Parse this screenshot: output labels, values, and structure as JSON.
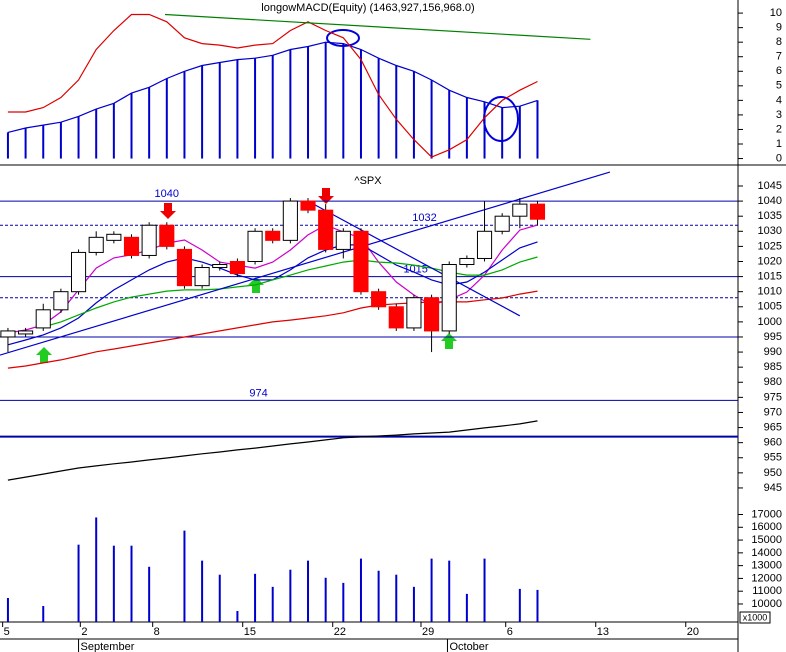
{
  "x_axis": {
    "xlim": [
      -0.45,
      41.36
    ],
    "xticks": [
      {
        "value": -0.3,
        "label": "5"
      },
      {
        "value": 4.1,
        "label": "2"
      },
      {
        "value": 8.2,
        "label": "8"
      },
      {
        "value": 13.3,
        "label": "15"
      },
      {
        "value": 18.4,
        "label": "22"
      },
      {
        "value": 23.4,
        "label": "29"
      },
      {
        "value": 28.2,
        "label": "6"
      },
      {
        "value": 33.3,
        "label": "13"
      },
      {
        "value": 38.4,
        "label": "20"
      }
    ],
    "months": [
      {
        "value": 4.0,
        "label": "September"
      },
      {
        "value": 24.9,
        "label": "October"
      }
    ]
  },
  "chart_data": [
    {
      "type": "indicator",
      "title": "longowMACD(Equity) (1463,927,156,968.0)",
      "ylim": [
        -0.1,
        10.9
      ],
      "yticks": [
        0,
        1,
        2,
        3,
        4,
        5,
        6,
        7,
        8,
        9,
        10
      ],
      "histogram": {
        "color": "#0000cc",
        "values": [
          1.8,
          2.1,
          2.3,
          2.5,
          2.9,
          3.4,
          3.8,
          4.5,
          4.9,
          5.5,
          6.0,
          6.4,
          6.6,
          6.8,
          6.9,
          7.1,
          7.5,
          7.7,
          8.0,
          7.9,
          7.5,
          6.9,
          6.4,
          6.0,
          5.4,
          4.7,
          4.2,
          3.9,
          3.5,
          3.6,
          4.0
        ]
      },
      "series": [
        {
          "color": "#dd0000",
          "values": [
            3.2,
            3.2,
            3.5,
            4.2,
            5.4,
            7.5,
            8.8,
            9.9,
            9.9,
            9.4,
            8.3,
            7.9,
            7.8,
            7.6,
            7.8,
            7.9,
            8.8,
            9.4,
            8.8,
            8.3,
            6.8,
            4.4,
            2.7,
            1.3,
            0.1,
            0.6,
            1.3,
            2.8,
            4.0,
            4.7,
            5.3
          ]
        }
      ],
      "trendlines": [
        {
          "color": "#008000",
          "x": [
            8.9,
            33.0
          ],
          "values": [
            9.9,
            8.2
          ]
        }
      ]
    },
    {
      "type": "candlestick",
      "title": "^SPX",
      "ylim": [
        942,
        1050.3
      ],
      "yticks": [
        945,
        950,
        955,
        960,
        965,
        970,
        975,
        980,
        985,
        990,
        995,
        1000,
        1005,
        1010,
        1015,
        1020,
        1025,
        1030,
        1035,
        1040,
        1045
      ],
      "up_color": "#ffffff",
      "down_color": "#ff0000",
      "open": [
        995,
        996,
        998,
        1004,
        1010,
        1023,
        1027,
        1028,
        1022,
        1032,
        1024,
        1012,
        1018,
        1020,
        1020,
        1030,
        1027,
        1040,
        1037,
        1024,
        1030,
        1010,
        1005,
        998,
        1008,
        997,
        1019,
        1021,
        1030,
        1035,
        1039
      ],
      "close": [
        997,
        997,
        1004,
        1010,
        1023,
        1028,
        1029,
        1022,
        1032,
        1025,
        1012,
        1018,
        1019,
        1016,
        1030,
        1027,
        1040,
        1037,
        1024,
        1030,
        1010,
        1005,
        998,
        1008,
        997,
        1019,
        1021,
        1030,
        1035,
        1039,
        1034
      ],
      "high": [
        998,
        998,
        1006,
        1011,
        1024,
        1030,
        1030,
        1029,
        1033,
        1033,
        1025,
        1019,
        1020,
        1021,
        1031,
        1031,
        1041,
        1041,
        1039,
        1031,
        1031,
        1011,
        1006,
        1009,
        1009,
        1020,
        1022,
        1040,
        1036,
        1041,
        1040
      ],
      "low": [
        990,
        995,
        997,
        1003,
        1009,
        1022,
        1026,
        1021,
        1021,
        1024,
        1011,
        1011,
        1017,
        1015,
        1019,
        1026,
        1026,
        1036,
        1023,
        1021,
        1009,
        1004,
        997,
        997,
        990,
        996,
        1018,
        1020,
        1029,
        1031,
        1032
      ],
      "series": [
        {
          "color": "#cc00cc",
          "values": [
            996.3,
            997.3,
            999.0,
            1003.3,
            1010.6,
            1017.8,
            1021.2,
            1022.2,
            1023.8,
            1026.1,
            1027.1,
            1023.8,
            1019.8,
            1018.8,
            1017.8,
            1019.8,
            1023.8,
            1028.8,
            1032.1,
            1029.8,
            1027.8,
            1019.8,
            1013.2,
            1008.9,
            1005.6,
            1007.3,
            1009.9,
            1015.5,
            1023.8,
            1030.4,
            1032.1
          ]
        },
        {
          "color": "#0000cc",
          "values": [
            992.4,
            994.0,
            995.7,
            998.0,
            1001.3,
            1006.3,
            1010.6,
            1013.9,
            1017.2,
            1019.8,
            1021.2,
            1019.8,
            1017.8,
            1015.5,
            1013.9,
            1013.9,
            1017.2,
            1021.2,
            1023.8,
            1025.5,
            1025.5,
            1022.2,
            1018.8,
            1016.5,
            1013.9,
            1012.2,
            1013.2,
            1016.5,
            1020.5,
            1024.5,
            1026.5
          ]
        },
        {
          "color": "#00aa00",
          "values": [
            null,
            null,
            998.3,
            1000.0,
            1002.3,
            1004.6,
            1006.6,
            1008.2,
            1009.2,
            1010.2,
            1010.6,
            1010.6,
            1010.9,
            1011.6,
            1012.2,
            1013.9,
            1015.5,
            1017.2,
            1018.5,
            1019.8,
            1020.5,
            1019.8,
            1019.5,
            1018.8,
            1017.8,
            1016.5,
            1015.5,
            1015.5,
            1017.2,
            1019.8,
            1021.5
          ]
        },
        {
          "color": "#dd0000",
          "values": [
            984.7,
            985.4,
            986.4,
            987.4,
            988.7,
            990.1,
            991.0,
            992.0,
            993.0,
            994.0,
            995.0,
            996.0,
            997.0,
            998.0,
            999.0,
            1000.0,
            1000.6,
            1001.3,
            1002.0,
            1003.0,
            1004.6,
            1005.6,
            1006.0,
            1006.3,
            1006.6,
            1006.6,
            1006.6,
            1007.3,
            1007.9,
            1009.2,
            1010.2
          ]
        },
        {
          "color": "#000000",
          "values": [
            947.6,
            948.6,
            949.6,
            950.6,
            951.6,
            952.3,
            953.0,
            953.6,
            954.3,
            954.9,
            955.6,
            956.3,
            956.9,
            957.6,
            958.2,
            958.9,
            959.6,
            960.2,
            960.9,
            961.6,
            961.9,
            962.2,
            962.5,
            962.9,
            963.2,
            963.5,
            964.2,
            964.9,
            965.5,
            966.2,
            967.2
          ]
        }
      ],
      "trendlines": [
        {
          "color": "#0000cc",
          "x": [
            -0.45,
            34.1
          ],
          "values": [
            989,
            1049.6
          ]
        },
        {
          "color": "#0000cc",
          "x": [
            17.0,
            29.0
          ],
          "values": [
            1040,
            1002
          ]
        }
      ],
      "levels": [
        {
          "value": 1040,
          "style": "solid",
          "labeled": true,
          "label_at": 9.0
        },
        {
          "value": 1032,
          "style": "dashed",
          "labeled": true,
          "label_at": 23.6
        },
        {
          "value": 1015,
          "style": "solid",
          "labeled": true,
          "label_at": 23.1
        },
        {
          "value": 1008,
          "style": "dashed",
          "labeled": false
        },
        {
          "value": 995,
          "style": "solid",
          "labeled": false
        },
        {
          "value": 974,
          "style": "solid",
          "labeled": true,
          "label_at": 14.2
        },
        {
          "value": 962,
          "style": "thick",
          "labeled": false
        }
      ]
    },
    {
      "type": "bar",
      "color": "#0000cc",
      "unit_label": "x1000",
      "ylim": [
        8590,
        17900
      ],
      "yticks": [
        10000,
        11000,
        12000,
        13000,
        14000,
        15000,
        16000,
        17000
      ],
      "values": [
        10470,
        null,
        9840,
        null,
        14640,
        16770,
        14560,
        14560,
        12910,
        null,
        15740,
        13390,
        12290,
        9450,
        12360,
        11340,
        12680,
        13390,
        12050,
        11650,
        13550,
        12600,
        12290,
        11340,
        13550,
        13390,
        10790,
        13550,
        null,
        11180,
        11100
      ]
    }
  ]
}
